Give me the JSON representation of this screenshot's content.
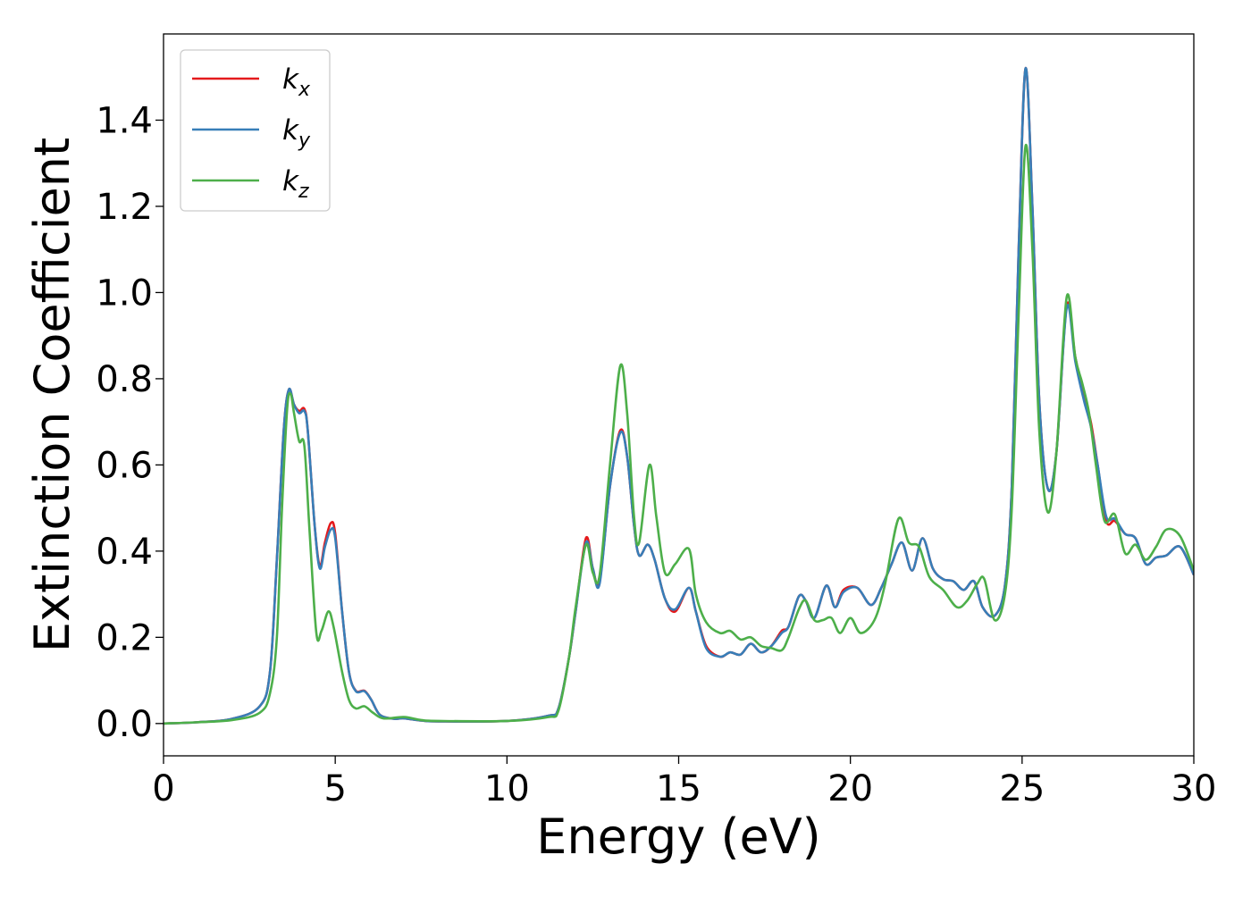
{
  "chart_data": {
    "type": "line",
    "title": "",
    "xlabel": "Energy (eV)",
    "ylabel": "Extinction Coefficient",
    "xlim": [
      0,
      30
    ],
    "ylim": [
      -0.075,
      1.6
    ],
    "xticks": [
      0,
      5,
      10,
      15,
      20,
      25,
      30
    ],
    "yticks": [
      0.0,
      0.2,
      0.4,
      0.6,
      0.8,
      1.0,
      1.2,
      1.4
    ],
    "xtick_labels": [
      "0",
      "5",
      "10",
      "15",
      "20",
      "25",
      "30"
    ],
    "ytick_labels": [
      "0.0",
      "0.2",
      "0.4",
      "0.6",
      "0.8",
      "1.0",
      "1.2",
      "1.4"
    ],
    "grid": false,
    "legend_position": "upper-left",
    "series": [
      {
        "name": "k_x",
        "legend_base": "k",
        "legend_sub": "x",
        "color": "#e41a1c",
        "points": [
          [
            0,
            0
          ],
          [
            1,
            0.003
          ],
          [
            2,
            0.011
          ],
          [
            2.8,
            0.04
          ],
          [
            3.1,
            0.12
          ],
          [
            3.3,
            0.38
          ],
          [
            3.5,
            0.68
          ],
          [
            3.65,
            0.775
          ],
          [
            3.8,
            0.74
          ],
          [
            3.95,
            0.725
          ],
          [
            4.1,
            0.73
          ],
          [
            4.2,
            0.68
          ],
          [
            4.4,
            0.46
          ],
          [
            4.55,
            0.365
          ],
          [
            4.7,
            0.42
          ],
          [
            4.87,
            0.465
          ],
          [
            5.0,
            0.44
          ],
          [
            5.2,
            0.26
          ],
          [
            5.4,
            0.12
          ],
          [
            5.6,
            0.076
          ],
          [
            5.85,
            0.076
          ],
          [
            6.05,
            0.055
          ],
          [
            6.3,
            0.02
          ],
          [
            6.7,
            0.011
          ],
          [
            7.0,
            0.012
          ],
          [
            7.5,
            0.007
          ],
          [
            8,
            0.005
          ],
          [
            10,
            0.006
          ],
          [
            11.2,
            0.018
          ],
          [
            11.5,
            0.035
          ],
          [
            11.8,
            0.15
          ],
          [
            12.0,
            0.26
          ],
          [
            12.3,
            0.43
          ],
          [
            12.5,
            0.36
          ],
          [
            12.7,
            0.33
          ],
          [
            13.0,
            0.55
          ],
          [
            13.3,
            0.68
          ],
          [
            13.5,
            0.62
          ],
          [
            13.7,
            0.46
          ],
          [
            13.85,
            0.39
          ],
          [
            14.1,
            0.415
          ],
          [
            14.3,
            0.38
          ],
          [
            14.6,
            0.29
          ],
          [
            14.9,
            0.26
          ],
          [
            15.3,
            0.315
          ],
          [
            15.5,
            0.26
          ],
          [
            15.8,
            0.18
          ],
          [
            16.2,
            0.155
          ],
          [
            16.5,
            0.165
          ],
          [
            16.8,
            0.16
          ],
          [
            17.1,
            0.185
          ],
          [
            17.4,
            0.165
          ],
          [
            17.7,
            0.18
          ],
          [
            18.0,
            0.215
          ],
          [
            18.2,
            0.225
          ],
          [
            18.5,
            0.295
          ],
          [
            18.7,
            0.285
          ],
          [
            18.95,
            0.245
          ],
          [
            19.3,
            0.32
          ],
          [
            19.55,
            0.27
          ],
          [
            19.8,
            0.31
          ],
          [
            20.2,
            0.315
          ],
          [
            20.6,
            0.275
          ],
          [
            20.9,
            0.315
          ],
          [
            21.2,
            0.37
          ],
          [
            21.5,
            0.42
          ],
          [
            21.8,
            0.355
          ],
          [
            22.1,
            0.43
          ],
          [
            22.4,
            0.36
          ],
          [
            22.7,
            0.335
          ],
          [
            23.0,
            0.33
          ],
          [
            23.3,
            0.31
          ],
          [
            23.6,
            0.33
          ],
          [
            23.85,
            0.27
          ],
          [
            24.2,
            0.25
          ],
          [
            24.5,
            0.32
          ],
          [
            24.7,
            0.55
          ],
          [
            24.9,
            1.1
          ],
          [
            25.1,
            1.52
          ],
          [
            25.3,
            1.2
          ],
          [
            25.5,
            0.75
          ],
          [
            25.75,
            0.545
          ],
          [
            26.0,
            0.63
          ],
          [
            26.3,
            0.97
          ],
          [
            26.55,
            0.85
          ],
          [
            26.8,
            0.76
          ],
          [
            27.0,
            0.7
          ],
          [
            27.2,
            0.6
          ],
          [
            27.45,
            0.47
          ],
          [
            27.7,
            0.47
          ],
          [
            28.0,
            0.44
          ],
          [
            28.3,
            0.43
          ],
          [
            28.6,
            0.37
          ],
          [
            28.9,
            0.385
          ],
          [
            29.2,
            0.39
          ],
          [
            29.6,
            0.41
          ],
          [
            30,
            0.345
          ]
        ]
      },
      {
        "name": "k_y",
        "legend_base": "k",
        "legend_sub": "y",
        "color": "#377eb8",
        "points": [
          [
            0,
            0
          ],
          [
            1,
            0.003
          ],
          [
            2,
            0.011
          ],
          [
            2.8,
            0.04
          ],
          [
            3.1,
            0.12
          ],
          [
            3.3,
            0.38
          ],
          [
            3.5,
            0.68
          ],
          [
            3.65,
            0.775
          ],
          [
            3.8,
            0.74
          ],
          [
            3.95,
            0.72
          ],
          [
            4.1,
            0.725
          ],
          [
            4.2,
            0.68
          ],
          [
            4.4,
            0.46
          ],
          [
            4.55,
            0.36
          ],
          [
            4.7,
            0.41
          ],
          [
            4.87,
            0.45
          ],
          [
            5.0,
            0.43
          ],
          [
            5.2,
            0.26
          ],
          [
            5.4,
            0.12
          ],
          [
            5.6,
            0.075
          ],
          [
            5.85,
            0.075
          ],
          [
            6.05,
            0.055
          ],
          [
            6.3,
            0.02
          ],
          [
            6.7,
            0.011
          ],
          [
            7.0,
            0.012
          ],
          [
            7.5,
            0.007
          ],
          [
            8,
            0.005
          ],
          [
            10,
            0.006
          ],
          [
            11.2,
            0.018
          ],
          [
            11.5,
            0.035
          ],
          [
            11.8,
            0.15
          ],
          [
            12.0,
            0.26
          ],
          [
            12.3,
            0.42
          ],
          [
            12.5,
            0.36
          ],
          [
            12.7,
            0.325
          ],
          [
            13.0,
            0.55
          ],
          [
            13.3,
            0.675
          ],
          [
            13.5,
            0.62
          ],
          [
            13.7,
            0.46
          ],
          [
            13.85,
            0.39
          ],
          [
            14.1,
            0.415
          ],
          [
            14.3,
            0.38
          ],
          [
            14.6,
            0.29
          ],
          [
            14.9,
            0.265
          ],
          [
            15.3,
            0.315
          ],
          [
            15.5,
            0.26
          ],
          [
            15.8,
            0.175
          ],
          [
            16.2,
            0.155
          ],
          [
            16.5,
            0.165
          ],
          [
            16.8,
            0.16
          ],
          [
            17.1,
            0.185
          ],
          [
            17.4,
            0.165
          ],
          [
            17.7,
            0.18
          ],
          [
            18.0,
            0.21
          ],
          [
            18.2,
            0.225
          ],
          [
            18.5,
            0.295
          ],
          [
            18.7,
            0.285
          ],
          [
            18.95,
            0.245
          ],
          [
            19.3,
            0.32
          ],
          [
            19.55,
            0.27
          ],
          [
            19.8,
            0.305
          ],
          [
            20.2,
            0.315
          ],
          [
            20.6,
            0.275
          ],
          [
            20.9,
            0.315
          ],
          [
            21.2,
            0.37
          ],
          [
            21.5,
            0.42
          ],
          [
            21.8,
            0.355
          ],
          [
            22.1,
            0.43
          ],
          [
            22.4,
            0.36
          ],
          [
            22.7,
            0.335
          ],
          [
            23.0,
            0.33
          ],
          [
            23.3,
            0.31
          ],
          [
            23.6,
            0.33
          ],
          [
            23.85,
            0.27
          ],
          [
            24.2,
            0.25
          ],
          [
            24.5,
            0.32
          ],
          [
            24.7,
            0.55
          ],
          [
            24.9,
            1.1
          ],
          [
            25.1,
            1.52
          ],
          [
            25.3,
            1.2
          ],
          [
            25.5,
            0.75
          ],
          [
            25.75,
            0.545
          ],
          [
            26.0,
            0.63
          ],
          [
            26.3,
            0.965
          ],
          [
            26.55,
            0.84
          ],
          [
            26.8,
            0.75
          ],
          [
            27.0,
            0.69
          ],
          [
            27.2,
            0.6
          ],
          [
            27.45,
            0.48
          ],
          [
            27.7,
            0.475
          ],
          [
            28.0,
            0.44
          ],
          [
            28.3,
            0.43
          ],
          [
            28.6,
            0.37
          ],
          [
            28.9,
            0.385
          ],
          [
            29.2,
            0.39
          ],
          [
            29.6,
            0.41
          ],
          [
            30,
            0.345
          ]
        ]
      },
      {
        "name": "k_z",
        "legend_base": "k",
        "legend_sub": "z",
        "color": "#4daf4a",
        "points": [
          [
            0,
            0
          ],
          [
            1,
            0.003
          ],
          [
            2,
            0.008
          ],
          [
            2.8,
            0.025
          ],
          [
            3.1,
            0.07
          ],
          [
            3.3,
            0.2
          ],
          [
            3.45,
            0.5
          ],
          [
            3.6,
            0.73
          ],
          [
            3.7,
            0.765
          ],
          [
            3.8,
            0.72
          ],
          [
            3.95,
            0.655
          ],
          [
            4.1,
            0.645
          ],
          [
            4.25,
            0.45
          ],
          [
            4.45,
            0.21
          ],
          [
            4.6,
            0.215
          ],
          [
            4.8,
            0.26
          ],
          [
            4.95,
            0.225
          ],
          [
            5.2,
            0.12
          ],
          [
            5.4,
            0.055
          ],
          [
            5.6,
            0.035
          ],
          [
            5.85,
            0.04
          ],
          [
            6.1,
            0.025
          ],
          [
            6.4,
            0.012
          ],
          [
            7.0,
            0.015
          ],
          [
            7.5,
            0.008
          ],
          [
            8,
            0.006
          ],
          [
            10,
            0.006
          ],
          [
            11.2,
            0.015
          ],
          [
            11.5,
            0.03
          ],
          [
            11.8,
            0.15
          ],
          [
            12.0,
            0.27
          ],
          [
            12.3,
            0.415
          ],
          [
            12.5,
            0.35
          ],
          [
            12.7,
            0.345
          ],
          [
            13.0,
            0.6
          ],
          [
            13.3,
            0.83
          ],
          [
            13.5,
            0.72
          ],
          [
            13.7,
            0.48
          ],
          [
            13.85,
            0.42
          ],
          [
            14.15,
            0.6
          ],
          [
            14.35,
            0.48
          ],
          [
            14.6,
            0.35
          ],
          [
            14.9,
            0.37
          ],
          [
            15.3,
            0.405
          ],
          [
            15.5,
            0.3
          ],
          [
            15.8,
            0.235
          ],
          [
            16.2,
            0.21
          ],
          [
            16.5,
            0.215
          ],
          [
            16.8,
            0.195
          ],
          [
            17.1,
            0.2
          ],
          [
            17.4,
            0.18
          ],
          [
            17.7,
            0.175
          ],
          [
            18.0,
            0.17
          ],
          [
            18.2,
            0.2
          ],
          [
            18.5,
            0.265
          ],
          [
            18.7,
            0.285
          ],
          [
            18.95,
            0.24
          ],
          [
            19.2,
            0.24
          ],
          [
            19.45,
            0.245
          ],
          [
            19.7,
            0.21
          ],
          [
            20.0,
            0.245
          ],
          [
            20.3,
            0.21
          ],
          [
            20.7,
            0.24
          ],
          [
            21.0,
            0.32
          ],
          [
            21.4,
            0.475
          ],
          [
            21.7,
            0.42
          ],
          [
            22.0,
            0.41
          ],
          [
            22.3,
            0.34
          ],
          [
            22.7,
            0.31
          ],
          [
            23.1,
            0.27
          ],
          [
            23.4,
            0.285
          ],
          [
            23.7,
            0.325
          ],
          [
            23.9,
            0.335
          ],
          [
            24.2,
            0.24
          ],
          [
            24.5,
            0.3
          ],
          [
            24.7,
            0.5
          ],
          [
            24.9,
            0.95
          ],
          [
            25.1,
            1.34
          ],
          [
            25.3,
            1.1
          ],
          [
            25.5,
            0.68
          ],
          [
            25.75,
            0.49
          ],
          [
            26.0,
            0.63
          ],
          [
            26.3,
            0.99
          ],
          [
            26.55,
            0.85
          ],
          [
            26.75,
            0.79
          ],
          [
            26.95,
            0.72
          ],
          [
            27.15,
            0.6
          ],
          [
            27.4,
            0.47
          ],
          [
            27.7,
            0.485
          ],
          [
            28.0,
            0.395
          ],
          [
            28.3,
            0.415
          ],
          [
            28.6,
            0.38
          ],
          [
            28.9,
            0.41
          ],
          [
            29.2,
            0.45
          ],
          [
            29.6,
            0.435
          ],
          [
            30,
            0.355
          ]
        ]
      }
    ]
  }
}
